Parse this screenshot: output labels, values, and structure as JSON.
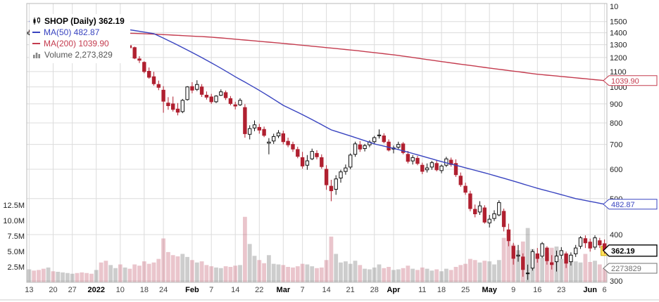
{
  "legend": {
    "title": "SHOP (Daily) 362.19",
    "ma50": "MA(50) 482.87",
    "ma200": "MA(200) 1039.90",
    "volume": "Volume 2,273,829"
  },
  "colors": {
    "up": "#111111",
    "down": "#b02030",
    "ma50": "#3944c0",
    "ma200": "#c43b4e",
    "vol_up": "rgba(130,130,130,0.40)",
    "vol_down": "rgba(196,90,110,0.35)",
    "grid": "#dcdcdc",
    "axis_text": "#222222",
    "last_marker": "#ffe45c"
  },
  "chart_data": {
    "type": "candlestick+volume",
    "symbol": "SHOP",
    "timeframe": "Daily",
    "last_price": 362.19,
    "ma50_last": 482.87,
    "ma200_last": 1039.9,
    "volume_last": 2273829,
    "scale": "log",
    "ylim": [
      300,
      1678
    ],
    "grid": true,
    "y_axis": {
      "side": "right",
      "ticks": [
        300,
        400,
        500,
        600,
        700,
        800,
        900,
        1000,
        1100,
        1200,
        1300,
        1400,
        1500
      ],
      "top_label": "10"
    },
    "volume_axis": {
      "ticks": [
        {
          "label": "12.5M",
          "value": 12.5
        },
        {
          "label": "10.0M",
          "value": 10.0
        },
        {
          "label": "7.5M",
          "value": 7.5
        },
        {
          "label": "5.0M",
          "value": 5.0
        },
        {
          "label": "2.5M",
          "value": 2.5
        }
      ]
    },
    "x_axis": {
      "ticks": [
        {
          "i": 0,
          "label": "13",
          "bold": false
        },
        {
          "i": 5,
          "label": "20",
          "bold": false
        },
        {
          "i": 9,
          "label": "27",
          "bold": false
        },
        {
          "i": 14,
          "label": "2022",
          "bold": true
        },
        {
          "i": 19,
          "label": "10",
          "bold": false
        },
        {
          "i": 24,
          "label": "18",
          "bold": false
        },
        {
          "i": 28,
          "label": "24",
          "bold": false
        },
        {
          "i": 34,
          "label": "Feb",
          "bold": true
        },
        {
          "i": 38,
          "label": "7",
          "bold": false
        },
        {
          "i": 43,
          "label": "14",
          "bold": false
        },
        {
          "i": 48,
          "label": "22",
          "bold": false
        },
        {
          "i": 53,
          "label": "Mar",
          "bold": true
        },
        {
          "i": 57,
          "label": "7",
          "bold": false
        },
        {
          "i": 62,
          "label": "14",
          "bold": false
        },
        {
          "i": 67,
          "label": "21",
          "bold": false
        },
        {
          "i": 72,
          "label": "28",
          "bold": false
        },
        {
          "i": 76,
          "label": "Apr",
          "bold": true
        },
        {
          "i": 82,
          "label": "11",
          "bold": false
        },
        {
          "i": 86,
          "label": "18",
          "bold": false
        },
        {
          "i": 91,
          "label": "25",
          "bold": false
        },
        {
          "i": 96,
          "label": "May",
          "bold": true
        },
        {
          "i": 101,
          "label": "9",
          "bold": false
        },
        {
          "i": 106,
          "label": "16",
          "bold": false
        },
        {
          "i": 111,
          "label": "23",
          "bold": false
        },
        {
          "i": 117,
          "label": "Jun",
          "bold": true
        },
        {
          "i": 120,
          "label": "6",
          "bold": false
        }
      ]
    },
    "callouts": [
      {
        "label": "1039.90",
        "value": 1039.9,
        "axis": "price",
        "color": "#c43b4e",
        "bold": false
      },
      {
        "label": "482.87",
        "value": 482.87,
        "axis": "price",
        "color": "#3944c0",
        "bold": false
      },
      {
        "label": "362.19",
        "value": 362.19,
        "axis": "price",
        "color": "#000000",
        "bold": true
      },
      {
        "label": "2273829",
        "value": 2.273829,
        "axis": "volume",
        "color": "#707070",
        "bold": false
      }
    ],
    "ma50_points": [
      [
        0,
        1502
      ],
      [
        14,
        1470
      ],
      [
        20,
        1432
      ],
      [
        26,
        1392
      ],
      [
        34,
        1238
      ],
      [
        43,
        1065
      ],
      [
        53,
        892
      ],
      [
        63,
        766
      ],
      [
        72,
        702
      ],
      [
        77,
        678
      ],
      [
        86,
        629
      ],
      [
        96,
        582
      ],
      [
        106,
        533
      ],
      [
        114,
        500
      ],
      [
        120,
        482.87
      ]
    ],
    "ma200_points": [
      [
        0,
        1412
      ],
      [
        14,
        1405
      ],
      [
        26,
        1388
      ],
      [
        38,
        1362
      ],
      [
        53,
        1310
      ],
      [
        68,
        1254
      ],
      [
        77,
        1216
      ],
      [
        86,
        1170
      ],
      [
        96,
        1124
      ],
      [
        106,
        1082
      ],
      [
        120,
        1039.9
      ]
    ],
    "candles": [
      [
        1390,
        1425,
        1378,
        1404,
        2.1
      ],
      [
        1404,
        1412,
        1365,
        1380,
        1.9
      ],
      [
        1380,
        1398,
        1352,
        1360,
        2.0
      ],
      [
        1362,
        1375,
        1330,
        1342,
        2.2
      ],
      [
        1342,
        1380,
        1338,
        1368,
        2.4
      ],
      [
        1360,
        1372,
        1335,
        1352,
        1.8
      ],
      [
        1355,
        1395,
        1350,
        1390,
        1.7
      ],
      [
        1390,
        1418,
        1385,
        1410,
        1.6
      ],
      [
        1412,
        1435,
        1405,
        1428,
        1.5
      ],
      [
        1430,
        1455,
        1422,
        1442,
        1.4
      ],
      [
        1442,
        1450,
        1410,
        1420,
        1.5
      ],
      [
        1420,
        1432,
        1392,
        1398,
        1.6
      ],
      [
        1400,
        1415,
        1380,
        1385,
        1.5
      ],
      [
        1385,
        1395,
        1370,
        1377,
        1.4
      ],
      [
        1382,
        1400,
        1356,
        1388,
        2.0
      ],
      [
        1390,
        1398,
        1300,
        1310,
        3.2
      ],
      [
        1308,
        1322,
        1248,
        1256,
        3.5
      ],
      [
        1255,
        1288,
        1240,
        1270,
        2.8
      ],
      [
        1272,
        1296,
        1258,
        1282,
        2.3
      ],
      [
        1270,
        1292,
        1226,
        1261,
        2.9
      ],
      [
        1262,
        1298,
        1255,
        1290,
        2.4
      ],
      [
        1292,
        1305,
        1262,
        1275,
        2.2
      ],
      [
        1276,
        1284,
        1188,
        1196,
        2.9
      ],
      [
        1190,
        1210,
        1160,
        1180,
        2.7
      ],
      [
        1165,
        1172,
        1088,
        1100,
        3.4
      ],
      [
        1102,
        1128,
        1052,
        1062,
        3.0
      ],
      [
        1065,
        1098,
        1008,
        1020,
        3.2
      ],
      [
        1015,
        1040,
        980,
        997,
        3.8
      ],
      [
        980,
        1005,
        852,
        915,
        7.1
      ],
      [
        905,
        938,
        868,
        890,
        4.9
      ],
      [
        900,
        942,
        858,
        870,
        4.4
      ],
      [
        872,
        905,
        838,
        855,
        4.2
      ],
      [
        858,
        928,
        850,
        920,
        4.6
      ],
      [
        925,
        1005,
        918,
        1000,
        4.1
      ],
      [
        1002,
        1030,
        962,
        980,
        3.6
      ],
      [
        985,
        1042,
        975,
        1015,
        3.2
      ],
      [
        1000,
        1018,
        940,
        955,
        3.4
      ],
      [
        950,
        972,
        925,
        938,
        2.8
      ],
      [
        940,
        958,
        900,
        912,
        2.6
      ],
      [
        912,
        950,
        905,
        945,
        2.4
      ],
      [
        950,
        985,
        945,
        970,
        2.3
      ],
      [
        965,
        978,
        922,
        935,
        2.6
      ],
      [
        930,
        945,
        892,
        902,
        2.5
      ],
      [
        895,
        912,
        870,
        888,
        2.7
      ],
      [
        895,
        932,
        888,
        920,
        2.8
      ],
      [
        880,
        898,
        730,
        748,
        10.6
      ],
      [
        745,
        788,
        722,
        772,
        6.2
      ],
      [
        775,
        812,
        760,
        790,
        4.3
      ],
      [
        778,
        795,
        748,
        765,
        3.6
      ],
      [
        768,
        782,
        732,
        740,
        3.1
      ],
      [
        705,
        728,
        658,
        710,
        4.4
      ],
      [
        715,
        748,
        702,
        735,
        3.0
      ],
      [
        738,
        765,
        728,
        752,
        2.9
      ],
      [
        748,
        762,
        700,
        712,
        2.8
      ],
      [
        714,
        730,
        688,
        698,
        2.5
      ],
      [
        700,
        712,
        668,
        680,
        2.4
      ],
      [
        678,
        690,
        642,
        650,
        2.6
      ],
      [
        645,
        668,
        602,
        612,
        3.0
      ],
      [
        615,
        655,
        598,
        632,
        2.9
      ],
      [
        640,
        682,
        635,
        670,
        2.6
      ],
      [
        662,
        675,
        638,
        648,
        2.3
      ],
      [
        645,
        658,
        602,
        610,
        2.4
      ],
      [
        600,
        615,
        528,
        545,
        3.6
      ],
      [
        540,
        562,
        492,
        525,
        7.4
      ],
      [
        530,
        578,
        512,
        565,
        4.6
      ],
      [
        568,
        598,
        552,
        590,
        3.2
      ],
      [
        592,
        618,
        580,
        605,
        3.4
      ],
      [
        608,
        662,
        600,
        655,
        3.0
      ],
      [
        658,
        712,
        648,
        702,
        3.5
      ],
      [
        698,
        715,
        668,
        680,
        2.8
      ],
      [
        682,
        702,
        670,
        695,
        2.2
      ],
      [
        698,
        718,
        688,
        710,
        2.1
      ],
      [
        712,
        738,
        702,
        730,
        2.4
      ],
      [
        738,
        768,
        726,
        742,
        2.9
      ],
      [
        738,
        750,
        705,
        712,
        2.3
      ],
      [
        710,
        722,
        670,
        676,
        2.5
      ],
      [
        680,
        695,
        662,
        685,
        2.0
      ],
      [
        688,
        712,
        680,
        700,
        2.1
      ],
      [
        702,
        710,
        658,
        665,
        2.3
      ],
      [
        658,
        672,
        622,
        630,
        2.7
      ],
      [
        632,
        655,
        618,
        645,
        2.2
      ],
      [
        642,
        652,
        615,
        622,
        2.0
      ],
      [
        615,
        625,
        582,
        592,
        2.4
      ],
      [
        598,
        622,
        588,
        605,
        2.2
      ],
      [
        608,
        632,
        598,
        625,
        1.9
      ],
      [
        622,
        635,
        592,
        598,
        2.1
      ],
      [
        595,
        618,
        585,
        612,
        1.8
      ],
      [
        615,
        648,
        608,
        640,
        2.2
      ],
      [
        635,
        645,
        610,
        618,
        2.0
      ],
      [
        622,
        638,
        572,
        580,
        2.5
      ],
      [
        575,
        588,
        538,
        545,
        2.8
      ],
      [
        540,
        552,
        512,
        520,
        3.0
      ],
      [
        515,
        525,
        462,
        470,
        3.8
      ],
      [
        468,
        482,
        445,
        455,
        3.6
      ],
      [
        460,
        492,
        452,
        478,
        3.2
      ],
      [
        472,
        480,
        428,
        432,
        3.5
      ],
      [
        430,
        452,
        418,
        440,
        3.4
      ],
      [
        442,
        465,
        435,
        455,
        2.9
      ],
      [
        452,
        495,
        448,
        488,
        3.6
      ],
      [
        462,
        470,
        408,
        420,
        7.2
      ],
      [
        412,
        428,
        372,
        385,
        6.8
      ],
      [
        372,
        380,
        332,
        345,
        6.1
      ],
      [
        350,
        375,
        338,
        352,
        5.2
      ],
      [
        348,
        356,
        308,
        322,
        6.6
      ],
      [
        315,
        332,
        302,
        315,
        8.8
      ],
      [
        325,
        365,
        320,
        360,
        5.4
      ],
      [
        355,
        368,
        336,
        345,
        4.2
      ],
      [
        350,
        382,
        346,
        378,
        4.0
      ],
      [
        368,
        372,
        332,
        340,
        4.8
      ],
      [
        336,
        352,
        322,
        332,
        5.6
      ],
      [
        338,
        362,
        318,
        350,
        5.8
      ],
      [
        352,
        370,
        344,
        362,
        3.8
      ],
      [
        355,
        360,
        325,
        335,
        4.4
      ],
      [
        338,
        358,
        330,
        352,
        3.6
      ],
      [
        355,
        375,
        348,
        368,
        3.4
      ],
      [
        372,
        396,
        366,
        392,
        3.2
      ],
      [
        390,
        398,
        368,
        380,
        4.6
      ],
      [
        382,
        390,
        360,
        368,
        3.3
      ],
      [
        370,
        398,
        364,
        392,
        3.5
      ],
      [
        385,
        392,
        368,
        375,
        2.9
      ],
      [
        378,
        388,
        355,
        362.19,
        2.27
      ]
    ]
  }
}
